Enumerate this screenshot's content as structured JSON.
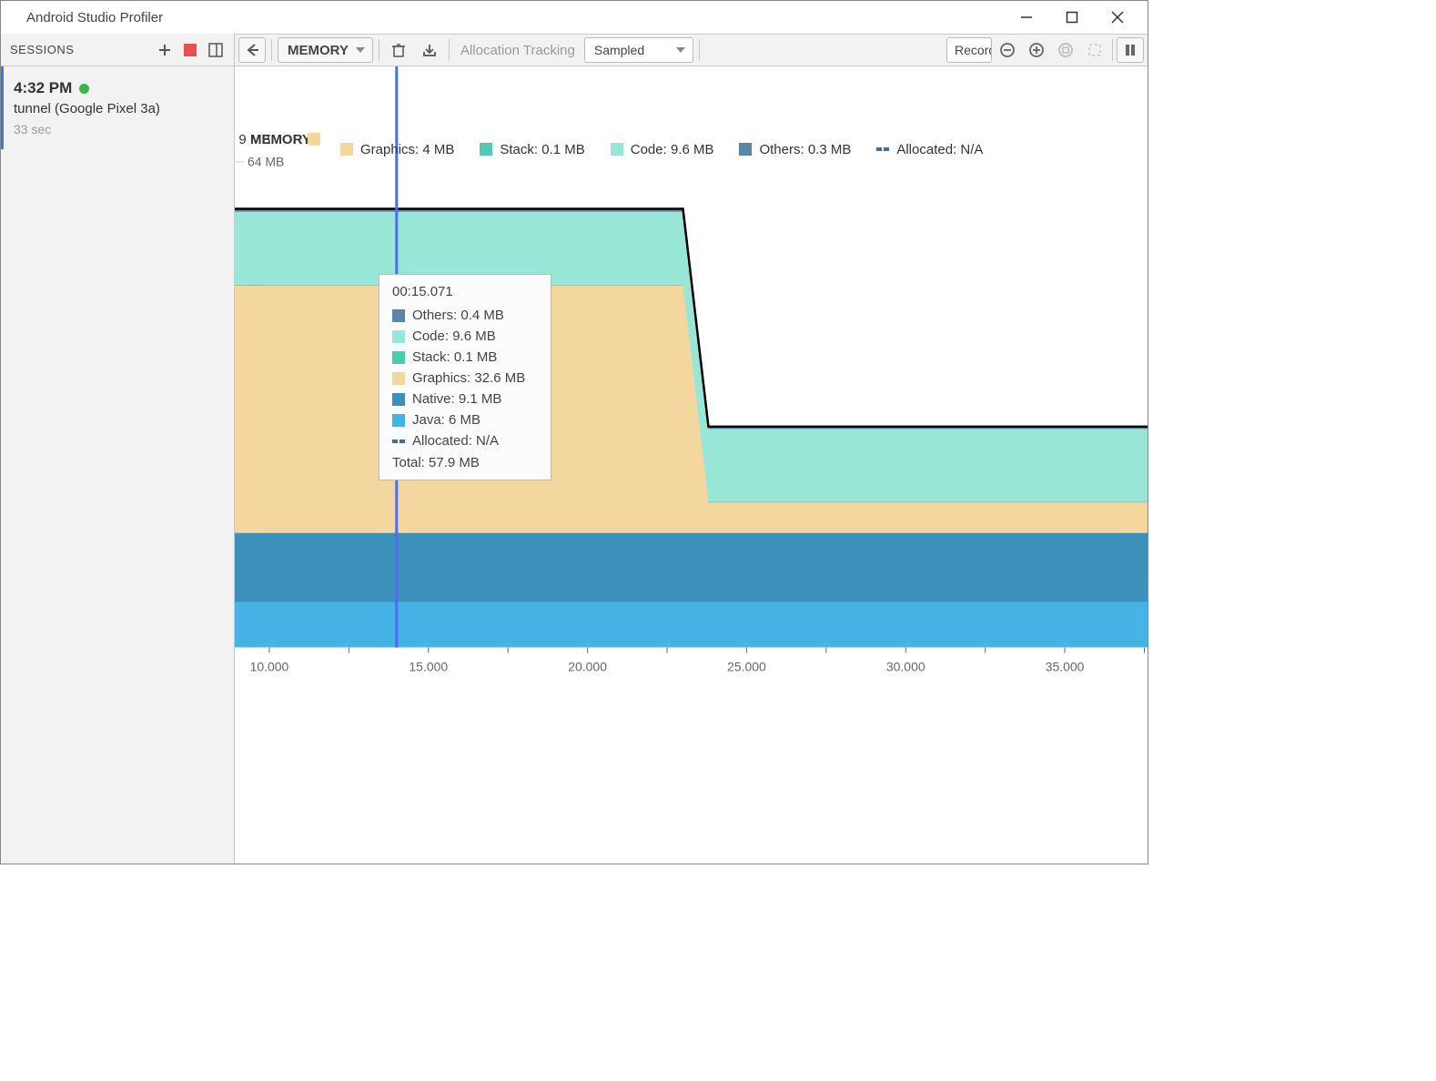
{
  "window": {
    "title": "Android Studio Profiler"
  },
  "sidebar": {
    "header": "SESSIONS",
    "session": {
      "time": "4:32 PM",
      "device": "tunnel (Google Pixel 3a)",
      "duration": "33 sec"
    }
  },
  "toolbar": {
    "profiler_label": "MEMORY",
    "allocation_label": "Allocation Tracking",
    "tracking_mode": "Sampled",
    "record_label": "Record"
  },
  "colors": {
    "java": "#46b3e6",
    "native": "#3c91ba",
    "graphics": "#f4d79e",
    "stack": "#4ecab3",
    "code": "#97e6d6",
    "others": "#5b86a8",
    "total_line": "#000000",
    "cursor": "#4a6ef0",
    "grid": "#d0d0d0",
    "axis_text": "#666666",
    "bg": "#ffffff"
  },
  "chart": {
    "type": "stacked-area",
    "y_max": 64,
    "y_ticks": [
      16,
      32,
      48
    ],
    "y_top_label": "64 MB",
    "x_ticks": [
      "10.000",
      "15.000",
      "20.000",
      "25.000",
      "30.000",
      "35.000"
    ],
    "overlay_text_left": ": 9 MB",
    "overlay_text_memory": "MEMORY",
    "cursor_time": "14.0",
    "drop_time": "23.0",
    "layers_before": {
      "java": 6,
      "native": 9.1,
      "graphics": 32.6,
      "stack": 0.1,
      "code": 9.6,
      "others": 0.4
    },
    "layers_after": {
      "java": 6,
      "native": 9.1,
      "graphics": 4.0,
      "stack": 0.1,
      "code": 9.6,
      "others": 0.3
    }
  },
  "legend": {
    "items": [
      {
        "key": "graphics",
        "label": "Graphics: 4 MB",
        "color": "#f4d79e"
      },
      {
        "key": "stack",
        "label": "Stack: 0.1 MB",
        "color": "#4ecab3"
      },
      {
        "key": "code",
        "label": "Code: 9.6 MB",
        "color": "#97e6d6"
      },
      {
        "key": "others",
        "label": "Others: 0.3 MB",
        "color": "#5b86a8"
      },
      {
        "key": "allocated",
        "label": "Allocated: N/A",
        "dashed": true,
        "color": "#3c6ea8"
      }
    ]
  },
  "tooltip": {
    "timestamp": "00:15.071",
    "rows": [
      {
        "label": "Others: 0.4 MB",
        "color": "#5b86a8"
      },
      {
        "label": "Code: 9.6 MB",
        "color": "#97e6d6"
      },
      {
        "label": "Stack: 0.1 MB",
        "color": "#4ecab3"
      },
      {
        "label": "Graphics: 32.6 MB",
        "color": "#f4d79e"
      },
      {
        "label": "Native: 9.1 MB",
        "color": "#3c91ba"
      },
      {
        "label": "Java: 6 MB",
        "color": "#46b3e6"
      },
      {
        "label": "Allocated: N/A",
        "dashed": true,
        "color": "#3c6ea8"
      }
    ],
    "total": "Total: 57.9 MB"
  }
}
